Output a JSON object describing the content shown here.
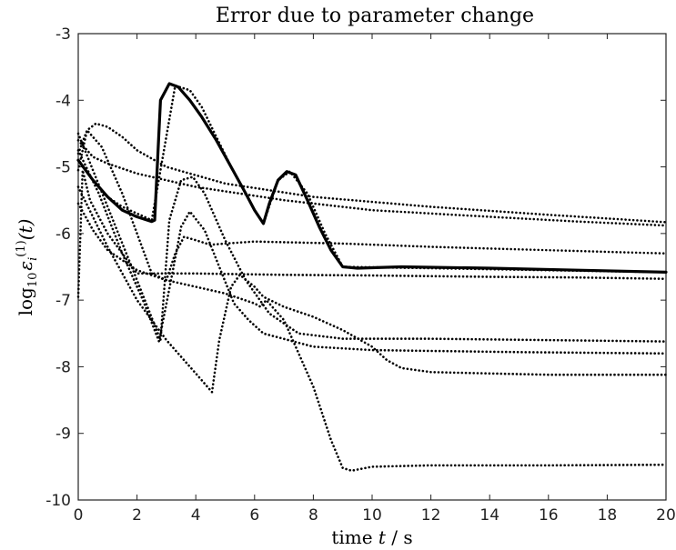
{
  "chart_data": {
    "type": "line",
    "title": "Error due to parameter change",
    "xlabel": {
      "prefix": "time ",
      "var": "t",
      "suffix": " / s"
    },
    "ylabel": {
      "log": "log",
      "base": "10",
      "eps": "ε",
      "sub": "i",
      "sup": "(1)",
      "arg": "(t)"
    },
    "xlim": [
      0,
      20
    ],
    "ylim": [
      -10,
      -3
    ],
    "xticks": [
      0,
      2,
      4,
      6,
      8,
      10,
      12,
      14,
      16,
      18,
      20
    ],
    "yticks": [
      -10,
      -9,
      -8,
      -7,
      -6,
      -5,
      -4,
      -3
    ],
    "grid": false,
    "series": [
      {
        "style": "solid",
        "x": [
          0,
          0.5,
          1,
          1.5,
          2,
          2.5,
          2.6,
          2.8,
          3.1,
          3.4,
          3.8,
          4.2,
          4.7,
          5.2,
          5.7,
          6.0,
          6.3,
          6.5,
          6.8,
          7.1,
          7.4,
          7.8,
          8.2,
          8.6,
          9.0,
          9.5,
          11,
          14,
          17,
          20
        ],
        "y": [
          -4.9,
          -5.2,
          -5.45,
          -5.65,
          -5.75,
          -5.82,
          -5.8,
          -4.0,
          -3.75,
          -3.8,
          -4.0,
          -4.25,
          -4.6,
          -5.0,
          -5.4,
          -5.65,
          -5.85,
          -5.55,
          -5.2,
          -5.07,
          -5.12,
          -5.5,
          -5.9,
          -6.25,
          -6.5,
          -6.52,
          -6.5,
          -6.52,
          -6.55,
          -6.58
        ]
      },
      {
        "style": "dotted",
        "x": [
          0,
          0.5,
          1,
          1.5,
          2.5,
          3.3,
          3.8,
          4.2,
          4.7,
          5.2,
          5.7,
          6.0,
          6.3,
          6.8,
          7.2,
          7.8,
          8.4,
          9.0,
          12,
          16,
          20
        ],
        "y": [
          -4.9,
          -5.2,
          -5.45,
          -5.6,
          -5.8,
          -3.78,
          -3.85,
          -4.1,
          -4.55,
          -5.0,
          -5.4,
          -5.65,
          -5.85,
          -5.2,
          -5.07,
          -5.4,
          -6.0,
          -6.5,
          -6.52,
          -6.55,
          -6.58
        ]
      },
      {
        "style": "dotted",
        "x": [
          0,
          0.3,
          0.6,
          1,
          1.5,
          2,
          3,
          5,
          8,
          12,
          16,
          20
        ],
        "y": [
          -4.8,
          -4.45,
          -4.35,
          -4.4,
          -4.55,
          -4.75,
          -5.0,
          -5.25,
          -5.45,
          -5.6,
          -5.72,
          -5.83
        ]
      },
      {
        "style": "dotted",
        "x": [
          0,
          0.5,
          1,
          2,
          4,
          7,
          10,
          14,
          17,
          20
        ],
        "y": [
          -4.6,
          -4.85,
          -4.95,
          -5.1,
          -5.3,
          -5.5,
          -5.65,
          -5.75,
          -5.82,
          -5.88
        ]
      },
      {
        "style": "dotted",
        "x": [
          0,
          0.3,
          0.8,
          1.5,
          2.5,
          3.0,
          3.3,
          3.6,
          4.0,
          4.5,
          5,
          6,
          9,
          12,
          16,
          20
        ],
        "y": [
          -5.05,
          -4.45,
          -4.7,
          -5.4,
          -6.6,
          -6.7,
          -6.3,
          -6.05,
          -6.1,
          -6.17,
          -6.15,
          -6.12,
          -6.15,
          -6.2,
          -6.25,
          -6.3
        ]
      },
      {
        "style": "dotted",
        "x": [
          0,
          0.15,
          0.4,
          1,
          2,
          4,
          7,
          10,
          14,
          17,
          20
        ],
        "y": [
          -6.95,
          -5.05,
          -5.5,
          -6.0,
          -6.6,
          -6.6,
          -6.62,
          -6.63,
          -6.65,
          -6.66,
          -6.68
        ]
      },
      {
        "style": "dotted",
        "x": [
          0,
          0.7,
          1.5,
          2.2,
          2.75,
          3.2,
          3.5,
          3.8,
          4.3,
          4.8,
          5.3,
          5.8,
          6.3,
          8,
          10,
          15,
          20
        ],
        "y": [
          -4.75,
          -5.4,
          -6.3,
          -7.0,
          -7.62,
          -6.6,
          -5.9,
          -5.67,
          -5.95,
          -6.5,
          -7.05,
          -7.3,
          -7.5,
          -7.7,
          -7.75,
          -7.78,
          -7.8
        ]
      },
      {
        "style": "dotted",
        "x": [
          0,
          1,
          2,
          2.8,
          3.1,
          3.5,
          3.9,
          4.3,
          5.0,
          5.7,
          6.5,
          7.5,
          9,
          12,
          16,
          20
        ],
        "y": [
          -4.5,
          -5.6,
          -6.7,
          -7.6,
          -5.8,
          -5.2,
          -5.15,
          -5.4,
          -6.1,
          -6.7,
          -7.2,
          -7.5,
          -7.58,
          -7.58,
          -7.6,
          -7.62
        ]
      },
      {
        "style": "dotted",
        "x": [
          0,
          1,
          2,
          3,
          4,
          4.55,
          4.8,
          5.2,
          5.5,
          6.0,
          6.3,
          7,
          8,
          9,
          10,
          10.5,
          11,
          12,
          14,
          16,
          20
        ],
        "y": [
          -5.3,
          -6.2,
          -7.0,
          -7.6,
          -8.1,
          -8.38,
          -7.6,
          -6.8,
          -6.62,
          -6.8,
          -6.95,
          -7.1,
          -7.25,
          -7.45,
          -7.7,
          -7.9,
          -8.02,
          -8.08,
          -8.1,
          -8.12,
          -8.12
        ]
      },
      {
        "style": "dotted",
        "x": [
          0,
          0.5,
          1,
          2,
          3,
          4,
          5,
          6,
          6.2,
          6.4,
          7,
          8,
          8.6,
          9.0,
          9.3,
          10,
          12,
          16,
          20
        ],
        "y": [
          -5.55,
          -5.95,
          -6.25,
          -6.55,
          -6.7,
          -6.8,
          -6.9,
          -7.05,
          -7.1,
          -7.0,
          -7.3,
          -8.3,
          -9.1,
          -9.52,
          -9.56,
          -9.5,
          -9.48,
          -9.48,
          -9.47
        ]
      }
    ]
  }
}
